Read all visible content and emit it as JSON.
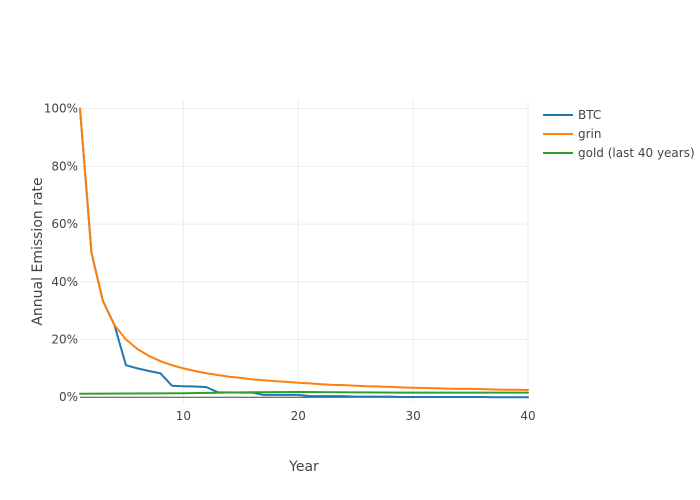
{
  "chart_data": {
    "type": "line",
    "title": "",
    "xlabel": "Year",
    "ylabel": "Annual Emission rate",
    "xlim": [
      1,
      40
    ],
    "ylim": [
      0,
      1.0
    ],
    "x_ticks": [
      10,
      20,
      30,
      40
    ],
    "y_ticks": [
      0,
      0.2,
      0.4,
      0.6,
      0.8,
      1.0
    ],
    "y_tick_labels": [
      "0%",
      "20%",
      "40%",
      "60%",
      "80%",
      "100%"
    ],
    "grid": true,
    "legend_position": "top-right",
    "series": [
      {
        "name": "BTC",
        "color": "#1f77b4",
        "x": [
          1,
          2,
          3,
          4,
          5,
          6,
          7,
          8,
          9,
          10,
          11,
          12,
          13,
          14,
          15,
          16,
          17,
          18,
          19,
          20,
          21,
          22,
          23,
          24,
          25,
          26,
          27,
          28,
          29,
          30,
          31,
          32,
          33,
          34,
          35,
          36,
          37,
          38,
          39,
          40
        ],
        "y": [
          1.0,
          0.5,
          0.333,
          0.25,
          0.111,
          0.1,
          0.091,
          0.083,
          0.04,
          0.038,
          0.037,
          0.035,
          0.017,
          0.017,
          0.016,
          0.016,
          0.008,
          0.008,
          0.008,
          0.008,
          0.004,
          0.004,
          0.004,
          0.004,
          0.002,
          0.002,
          0.002,
          0.002,
          0.001,
          0.001,
          0.001,
          0.001,
          0.001,
          0.001,
          0.001,
          0.001,
          0.0,
          0.0,
          0.0,
          0.0
        ]
      },
      {
        "name": "grin",
        "color": "#ff7f0e",
        "x": [
          1,
          2,
          3,
          4,
          5,
          6,
          7,
          8,
          9,
          10,
          11,
          12,
          13,
          14,
          15,
          16,
          17,
          18,
          19,
          20,
          21,
          22,
          23,
          24,
          25,
          26,
          27,
          28,
          29,
          30,
          31,
          32,
          33,
          34,
          35,
          36,
          37,
          38,
          39,
          40
        ],
        "y": [
          1.0,
          0.5,
          0.333,
          0.25,
          0.2,
          0.167,
          0.143,
          0.125,
          0.111,
          0.1,
          0.091,
          0.083,
          0.077,
          0.071,
          0.067,
          0.062,
          0.059,
          0.056,
          0.053,
          0.05,
          0.048,
          0.045,
          0.043,
          0.042,
          0.04,
          0.038,
          0.037,
          0.036,
          0.034,
          0.033,
          0.032,
          0.031,
          0.03,
          0.029,
          0.029,
          0.028,
          0.027,
          0.026,
          0.026,
          0.025
        ]
      },
      {
        "name": "gold (last 40 years)",
        "color": "#2ca02c",
        "x": [
          1,
          5,
          10,
          15,
          20,
          25,
          29,
          35,
          40
        ],
        "y": [
          0.012,
          0.013,
          0.014,
          0.017,
          0.018,
          0.017,
          0.016,
          0.016,
          0.016
        ]
      }
    ]
  }
}
